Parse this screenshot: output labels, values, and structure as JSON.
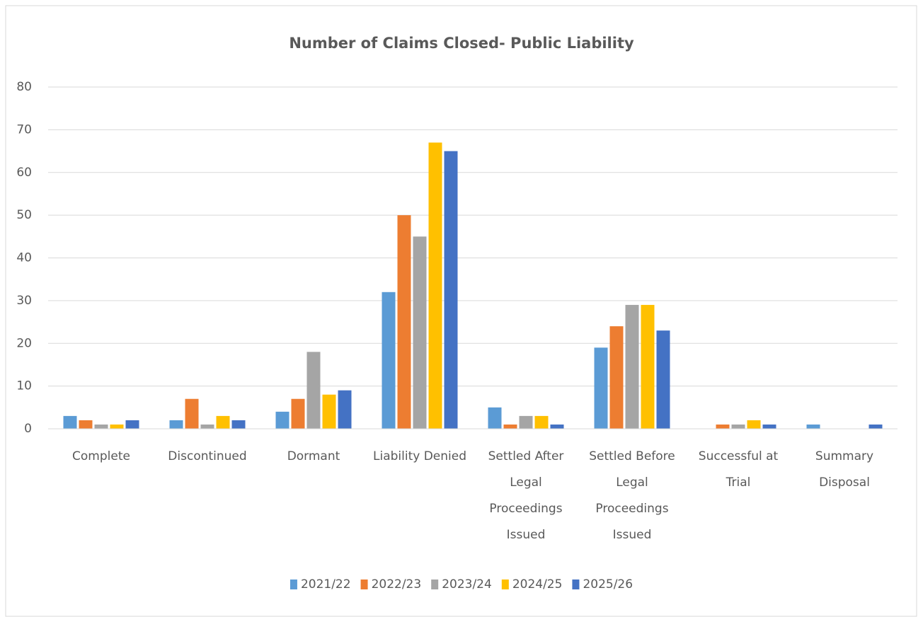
{
  "chart_data": {
    "type": "bar",
    "title": "Number of Claims Closed- Public Liability",
    "categories": [
      "Complete",
      "Discontinued",
      "Dormant",
      "Liability Denied",
      "Settled After Legal Proceedings Issued",
      "Settled Before Legal Proceedings Issued",
      "Successful at Trial",
      "Summary Disposal"
    ],
    "series": [
      {
        "name": "2021/22",
        "color": "#5b9bd5",
        "values": [
          3,
          2,
          4,
          32,
          5,
          19,
          0,
          1
        ]
      },
      {
        "name": "2022/23",
        "color": "#ed7d31",
        "values": [
          2,
          7,
          7,
          50,
          1,
          24,
          1,
          0
        ]
      },
      {
        "name": "2023/24",
        "color": "#a5a5a5",
        "values": [
          1,
          1,
          18,
          45,
          3,
          29,
          1,
          0
        ]
      },
      {
        "name": "2024/25",
        "color": "#ffc000",
        "values": [
          1,
          3,
          8,
          67,
          3,
          29,
          2,
          0
        ]
      },
      {
        "name": "2025/26",
        "color": "#4472c4",
        "values": [
          2,
          2,
          9,
          65,
          1,
          23,
          1,
          1
        ]
      }
    ],
    "ylim": [
      0,
      80
    ],
    "yticks": [
      0,
      10,
      20,
      30,
      40,
      50,
      60,
      70,
      80
    ],
    "grid": true,
    "legend": "bottom"
  }
}
